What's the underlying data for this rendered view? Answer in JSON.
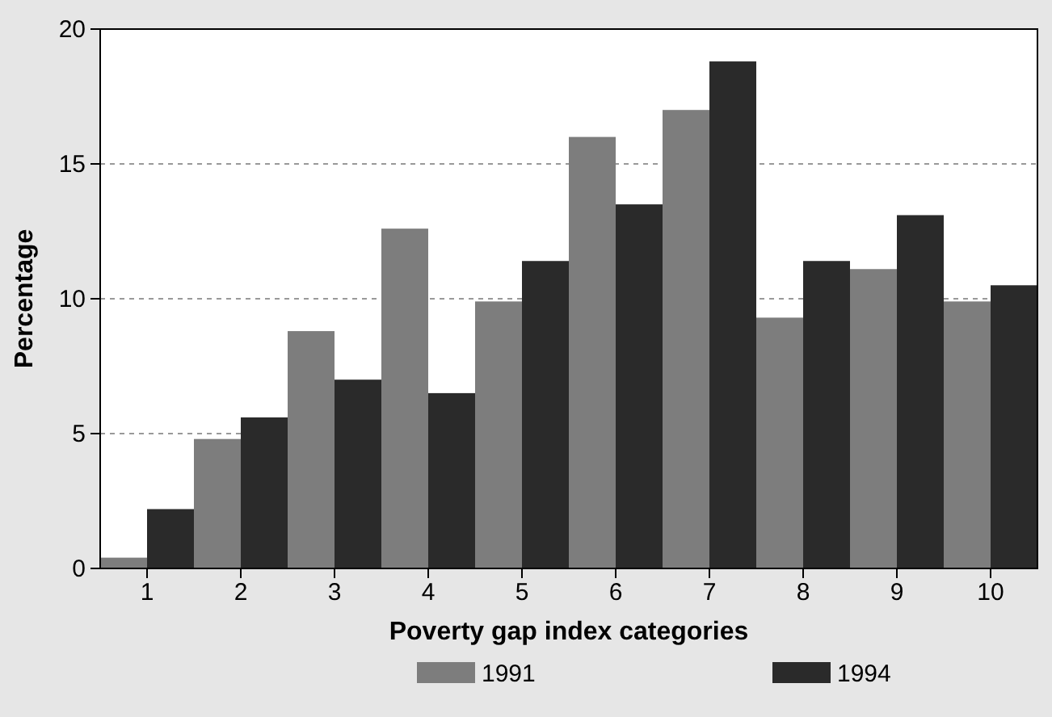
{
  "chart_data": {
    "type": "bar",
    "xlabel": "Poverty gap index categories",
    "ylabel": "Percentage",
    "categories": [
      "1",
      "2",
      "3",
      "4",
      "5",
      "6",
      "7",
      "8",
      "9",
      "10"
    ],
    "series": [
      {
        "name": "1991",
        "color": "#7d7d7d",
        "values": [
          0.4,
          4.8,
          8.8,
          12.6,
          9.9,
          16.0,
          17.0,
          9.3,
          11.1,
          9.9
        ]
      },
      {
        "name": "1994",
        "color": "#2a2a2a",
        "values": [
          2.2,
          5.6,
          7.0,
          6.5,
          11.4,
          13.5,
          18.8,
          11.4,
          13.1,
          10.5
        ]
      }
    ],
    "ylim": [
      0,
      20
    ],
    "yticks": [
      0,
      5,
      10,
      15,
      20
    ],
    "grid": "y",
    "legend": "bottom"
  }
}
